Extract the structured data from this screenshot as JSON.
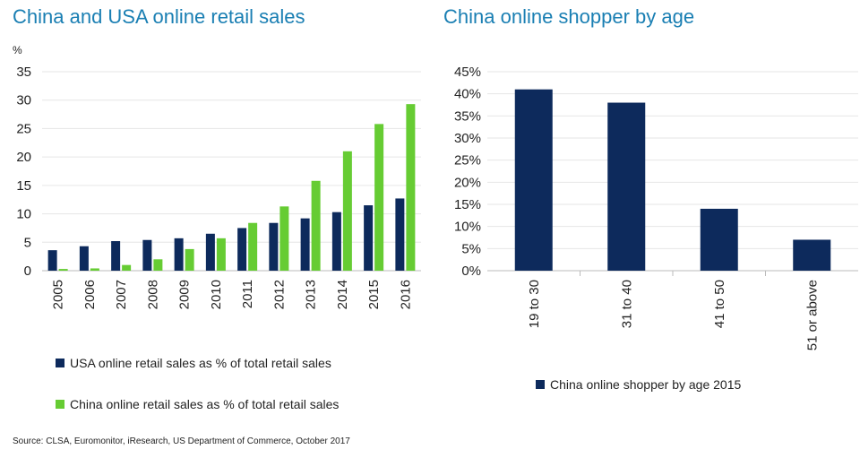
{
  "chart_data": [
    {
      "type": "bar",
      "title": "China and USA online retail sales",
      "ylabel": "%",
      "ylim": [
        0,
        35
      ],
      "yticks": [
        0,
        5,
        10,
        15,
        20,
        25,
        30,
        35
      ],
      "grid": true,
      "categories": [
        "2005",
        "2006",
        "2007",
        "2008",
        "2009",
        "2010",
        "2011",
        "2012",
        "2013",
        "2014",
        "2015",
        "2016"
      ],
      "series": [
        {
          "name": "USA online retail sales as % of total retail sales",
          "color": "#0d2a5c",
          "values": [
            3.6,
            4.3,
            5.2,
            5.4,
            5.7,
            6.5,
            7.5,
            8.4,
            9.2,
            10.3,
            11.5,
            12.7
          ]
        },
        {
          "name": "China online retail sales as % of total retail sales",
          "color": "#66cc33",
          "values": [
            0.3,
            0.4,
            1.0,
            2.0,
            3.8,
            5.7,
            8.4,
            11.3,
            15.8,
            21.0,
            25.8,
            29.3
          ]
        }
      ],
      "legend_position": "bottom"
    },
    {
      "type": "bar",
      "title": "China online shopper by age",
      "ylim": [
        0,
        45
      ],
      "yticks": [
        "0%",
        "5%",
        "10%",
        "15%",
        "20%",
        "25%",
        "30%",
        "35%",
        "40%",
        "45%"
      ],
      "grid": true,
      "categories": [
        "19 to 30",
        "31 to 40",
        "41 to 50",
        "51 or above"
      ],
      "series": [
        {
          "name": "China online shopper by age 2015",
          "color": "#0d2a5c",
          "values": [
            41,
            38,
            14,
            7
          ]
        }
      ],
      "legend_position": "bottom"
    }
  ],
  "source": "Source:  CLSA, Euromonitor, iResearch, US Department of Commerce, October 2017"
}
